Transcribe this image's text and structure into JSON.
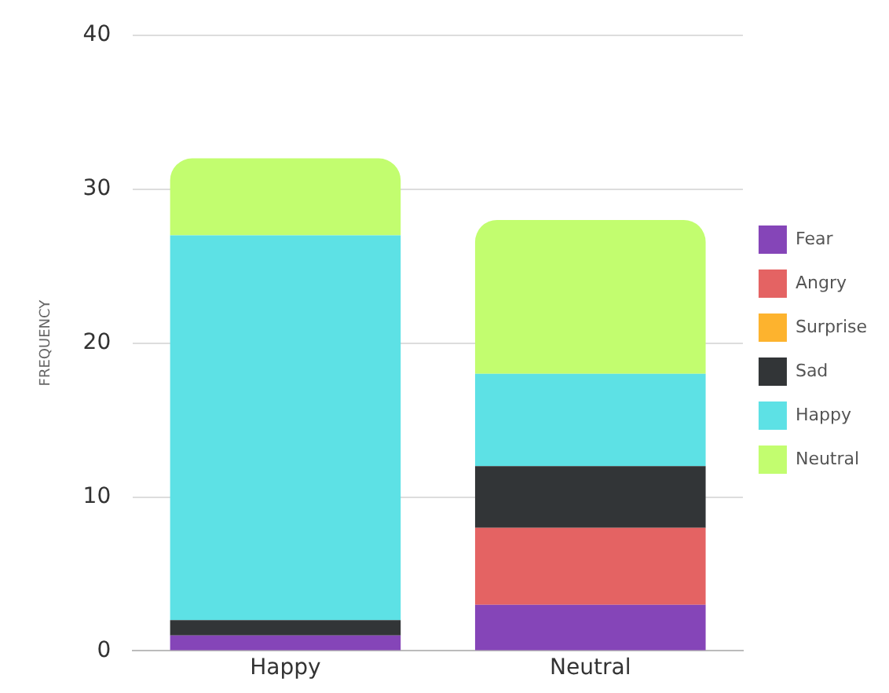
{
  "chart_data": {
    "type": "bar",
    "stacked": true,
    "ylabel": "FREQUENCY",
    "categories": [
      "Happy",
      "Neutral"
    ],
    "series": [
      {
        "name": "Fear",
        "color": "#8545b8",
        "values": [
          1,
          3
        ]
      },
      {
        "name": "Angry",
        "color": "#e46363",
        "values": [
          0,
          5
        ]
      },
      {
        "name": "Surprise",
        "color": "#fdb32e",
        "values": [
          0,
          0
        ]
      },
      {
        "name": "Sad",
        "color": "#323537",
        "values": [
          1,
          4
        ]
      },
      {
        "name": "Happy",
        "color": "#5de1e5",
        "values": [
          25,
          6
        ]
      },
      {
        "name": "Neutral",
        "color": "#c2fd6f",
        "values": [
          5,
          10
        ]
      }
    ],
    "ylim": [
      0,
      40
    ],
    "yticks": [
      0,
      10,
      20,
      30,
      40
    ],
    "grid": "y",
    "legend": "right"
  }
}
